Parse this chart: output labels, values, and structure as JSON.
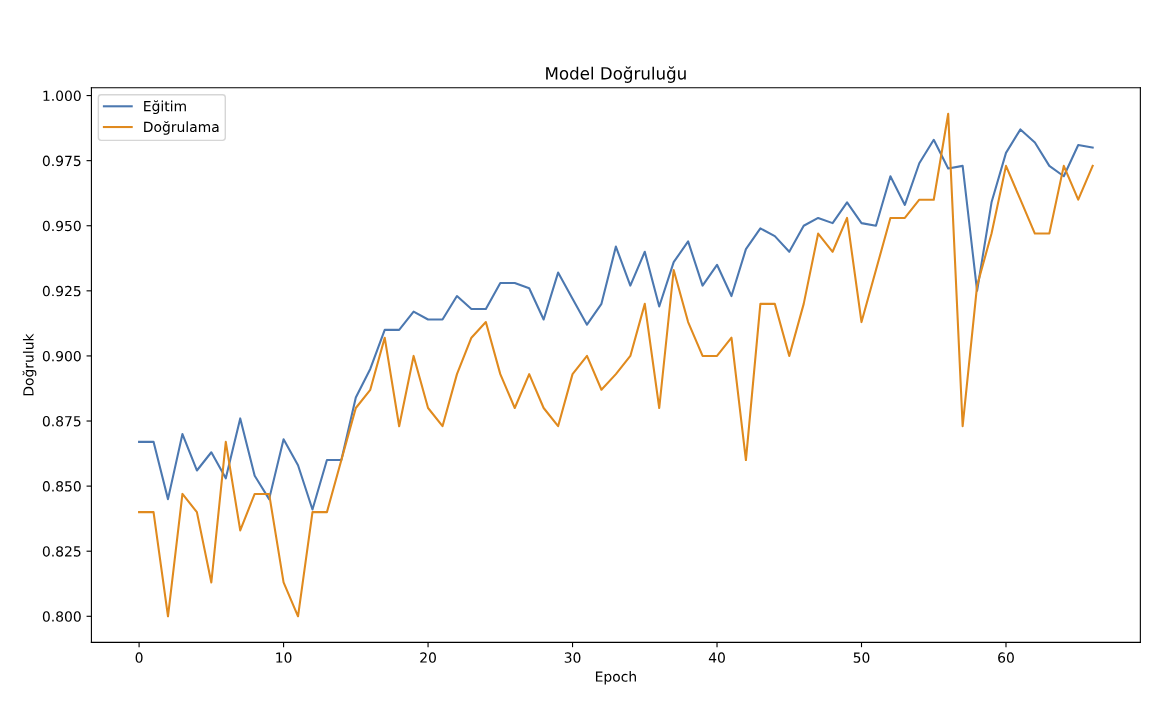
{
  "chart_data": {
    "type": "line",
    "title": "Model Doğruluğu",
    "xlabel": "Epoch",
    "ylabel": "Doğruluk",
    "x": [
      0,
      1,
      2,
      3,
      4,
      5,
      6,
      7,
      8,
      9,
      10,
      11,
      12,
      13,
      14,
      15,
      16,
      17,
      18,
      19,
      20,
      21,
      22,
      23,
      24,
      25,
      26,
      27,
      28,
      29,
      30,
      31,
      32,
      33,
      34,
      35,
      36,
      37,
      38,
      39,
      40,
      41,
      42,
      43,
      44,
      45,
      46,
      47,
      48,
      49,
      50,
      51,
      52,
      53,
      54,
      55,
      56,
      57,
      58,
      59,
      60,
      61,
      62,
      63,
      64,
      65,
      66
    ],
    "series": [
      {
        "name": "Eğitim",
        "color": "#4c78b0",
        "values": [
          0.867,
          0.867,
          0.845,
          0.87,
          0.856,
          0.863,
          0.853,
          0.876,
          0.854,
          0.845,
          0.868,
          0.858,
          0.841,
          0.86,
          0.86,
          0.884,
          0.895,
          0.91,
          0.91,
          0.917,
          0.914,
          0.914,
          0.923,
          0.918,
          0.918,
          0.928,
          0.928,
          0.926,
          0.914,
          0.932,
          0.922,
          0.912,
          0.92,
          0.942,
          0.927,
          0.94,
          0.919,
          0.936,
          0.944,
          0.927,
          0.935,
          0.923,
          0.941,
          0.949,
          0.946,
          0.94,
          0.95,
          0.953,
          0.951,
          0.959,
          0.951,
          0.95,
          0.969,
          0.958,
          0.974,
          0.983,
          0.972,
          0.973,
          0.925,
          0.959,
          0.978,
          0.987,
          0.982,
          0.973,
          0.969,
          0.981,
          0.98
        ]
      },
      {
        "name": "Doğrulama",
        "color": "#e08a1e",
        "values": [
          0.84,
          0.84,
          0.8,
          0.847,
          0.84,
          0.813,
          0.867,
          0.833,
          0.847,
          0.847,
          0.813,
          0.8,
          0.84,
          0.84,
          0.86,
          0.88,
          0.887,
          0.907,
          0.873,
          0.9,
          0.88,
          0.873,
          0.893,
          0.907,
          0.913,
          0.893,
          0.88,
          0.893,
          0.88,
          0.873,
          0.893,
          0.9,
          0.887,
          0.893,
          0.9,
          0.92,
          0.88,
          0.933,
          0.913,
          0.9,
          0.9,
          0.907,
          0.86,
          0.92,
          0.92,
          0.9,
          0.92,
          0.947,
          0.94,
          0.953,
          0.913,
          0.933,
          0.953,
          0.953,
          0.96,
          0.96,
          0.993,
          0.873,
          0.927,
          0.947,
          0.973,
          0.96,
          0.947,
          0.947,
          0.973,
          0.96,
          0.973
        ]
      }
    ],
    "xlim": [
      -3.3,
      69.3
    ],
    "ylim": [
      0.79,
      1.003
    ],
    "xticks": [
      0,
      10,
      20,
      30,
      40,
      50,
      60
    ],
    "yticks": [
      {
        "value": 0.8,
        "label": "0.800"
      },
      {
        "value": 0.825,
        "label": "0.825"
      },
      {
        "value": 0.85,
        "label": "0.850"
      },
      {
        "value": 0.875,
        "label": "0.875"
      },
      {
        "value": 0.9,
        "label": "0.900"
      },
      {
        "value": 0.925,
        "label": "0.925"
      },
      {
        "value": 0.95,
        "label": "0.950"
      },
      {
        "value": 0.975,
        "label": "0.975"
      },
      {
        "value": 1.0,
        "label": "1.000"
      }
    ],
    "legend": "top left",
    "grid": false,
    "marker": "none",
    "line_style": "solid"
  }
}
